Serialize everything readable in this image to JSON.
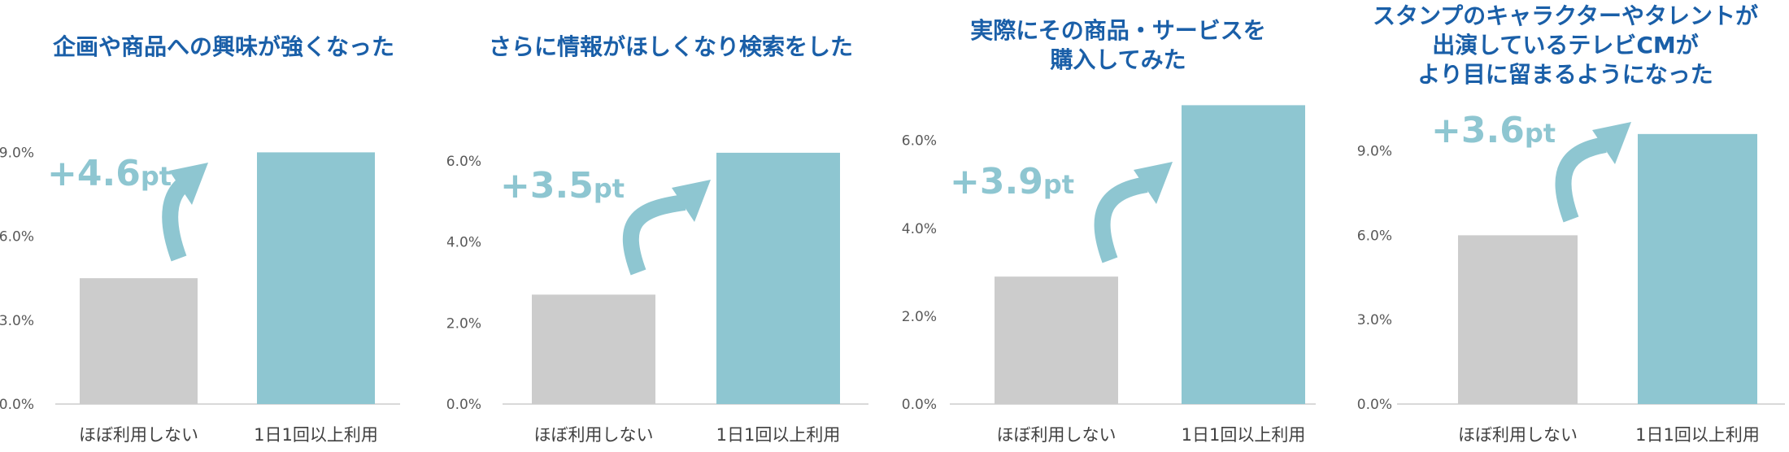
{
  "colors": {
    "title": "#1a5fa8",
    "bar_low": "#cccccc",
    "bar_high": "#8ec6d1",
    "arrow": "#8ec6d1",
    "axis": "#d9d9d9"
  },
  "chart_data": [
    {
      "type": "bar",
      "title": "企画や商品への興味が強くなった",
      "categories": [
        "ほぼ利用しない",
        "1日1回以上利用"
      ],
      "values": [
        4.5,
        9.0
      ],
      "yticks": [
        "0.0%",
        "3.0%",
        "6.0%",
        "9.0%"
      ],
      "ytick_values": [
        0,
        3,
        6,
        9
      ],
      "ylim": [
        0,
        10
      ],
      "delta_label": "+4.6",
      "delta_unit": "pt",
      "grid": false
    },
    {
      "type": "bar",
      "title": "さらに情報がほしくなり検索をした",
      "categories": [
        "ほぼ利用しない",
        "1日1回以上利用"
      ],
      "values": [
        2.7,
        6.2
      ],
      "yticks": [
        "0.0%",
        "2.0%",
        "4.0%",
        "6.0%"
      ],
      "ytick_values": [
        0,
        2,
        4,
        6
      ],
      "ylim": [
        0,
        6.9
      ],
      "delta_label": "+3.5",
      "delta_unit": "pt",
      "grid": false
    },
    {
      "type": "bar",
      "title": "実際にその商品・サービスを\n購入してみた",
      "categories": [
        "ほぼ利用しない",
        "1日1回以上利用"
      ],
      "values": [
        2.9,
        6.8
      ],
      "yticks": [
        "0.0%",
        "2.0%",
        "4.0%",
        "6.0%"
      ],
      "ytick_values": [
        0,
        2,
        4,
        6
      ],
      "ylim": [
        0,
        6.9
      ],
      "delta_label": "+3.9",
      "delta_unit": "pt",
      "grid": false
    },
    {
      "type": "bar",
      "title": "スタンプのキャラクターやタレントが\n出演しているテレビCMが\nより目に留まるようになった",
      "categories": [
        "ほぼ利用しない",
        "1日1回以上利用"
      ],
      "values": [
        6.0,
        9.6
      ],
      "yticks": [
        "0.0%",
        "3.0%",
        "6.0%",
        "9.0%"
      ],
      "ytick_values": [
        0,
        3,
        6,
        9
      ],
      "ylim": [
        0,
        10
      ],
      "delta_label": "+3.6",
      "delta_unit": "pt",
      "grid": false
    }
  ]
}
